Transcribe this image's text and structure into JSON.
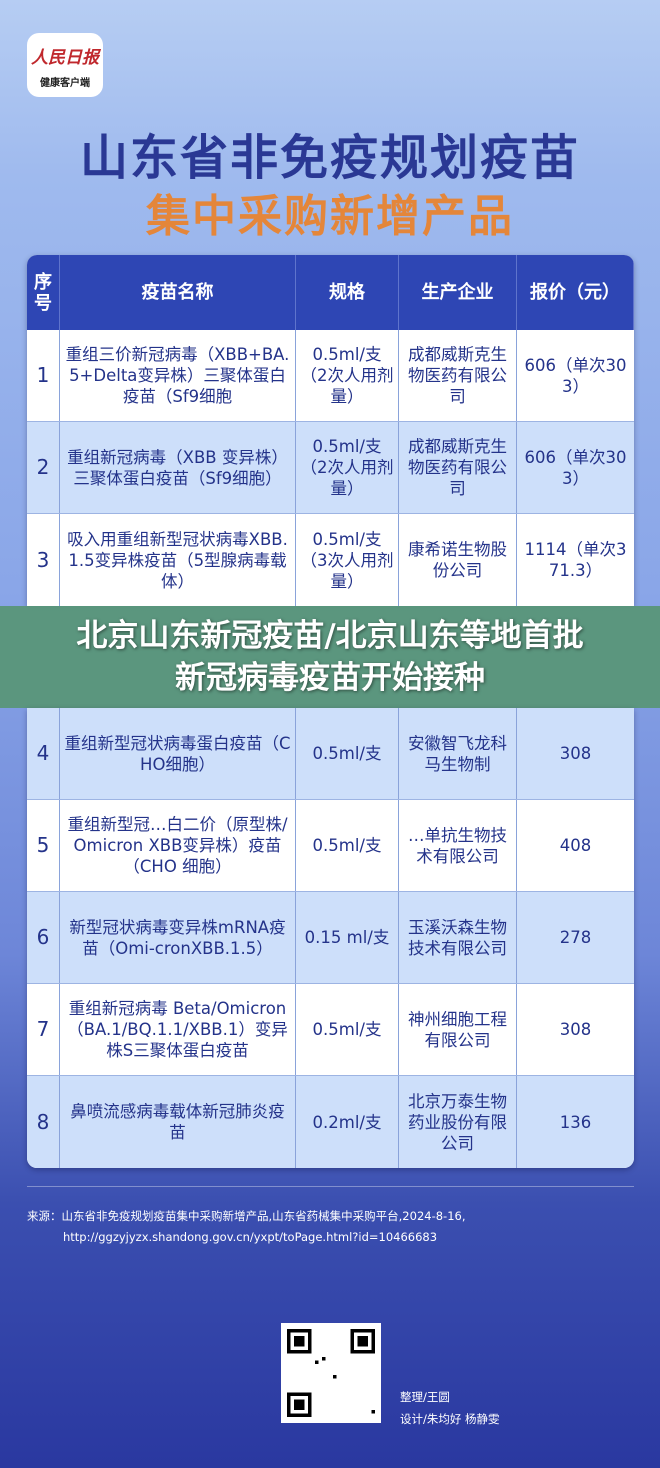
{
  "logo": {
    "line1": "人民日报",
    "line2": "健康客户端"
  },
  "title": {
    "line1": "山东省非免疫规划疫苗",
    "line2": "集中采购新增产品"
  },
  "table": {
    "headers": [
      "序号",
      "疫苗名称",
      "规格",
      "生产企业",
      "报价（元）"
    ],
    "rows": [
      [
        "1",
        "重组三价新冠病毒（XBB+BA.5+Delta变异株）三聚体蛋白疫苗（Sf9细胞",
        "0.5ml/支（2次人用剂量）",
        "成都威斯克生物医药有限公司",
        "606（单次303）"
      ],
      [
        "2",
        "重组新冠病毒（XBB 变异株）三聚体蛋白疫苗（Sf9细胞）",
        "0.5ml/支（2次人用剂量）",
        "成都威斯克生物医药有限公司",
        "606（单次303）"
      ],
      [
        "3",
        "吸入用重组新型冠状病毒XBB.1.5变异株疫苗（5型腺病毒载体）",
        "0.5ml/支（3次人用剂量）",
        "康希诺生物股份公司",
        "1114（单次371.3）"
      ],
      [
        "4",
        "重组新型冠状病毒蛋白疫苗（CHO细胞）",
        "0.5ml/支",
        "安徽智飞龙科马生物制",
        "308"
      ],
      [
        "5",
        "重组新型冠…白二价（原型株/Omicron XBB变异株）疫苗（CHO 细胞）",
        "0.5ml/支",
        "…单抗生物技术有限公司",
        "408"
      ],
      [
        "6",
        "新型冠状病毒变异株mRNA疫苗（Omi-cronXBB.1.5）",
        "0.15 ml/支",
        "玉溪沃森生物技术有限公司",
        "278"
      ],
      [
        "7",
        "重组新冠病毒 Beta/Omicron（BA.1/BQ.1.1/XBB.1）变异株S三聚体蛋白疫苗",
        "0.5ml/支",
        "神州细胞工程有限公司",
        "308"
      ],
      [
        "8",
        "鼻喷流感病毒载体新冠肺炎疫苗",
        "0.2ml/支",
        "北京万泰生物药业股份有限公司",
        "136"
      ]
    ]
  },
  "banner": {
    "line1": "北京山东新冠疫苗/北京山东等地首批",
    "line2": "新冠病毒疫苗开始接种"
  },
  "source": {
    "line1": "来源：山东省非免疫规划疫苗集中采购新增产品,山东省药械集中采购平台,2024-8-16,",
    "line2": "http://ggzyjyzx.shandong.gov.cn/yxpt/toPage.html?id=10466683"
  },
  "credits": {
    "editor": "整理/王圆",
    "design": "设计/朱均好  杨静雯"
  },
  "colors": {
    "header": "#2e46b4",
    "title": "#2a3894",
    "subtitle": "#e4863a",
    "banner": "#5f9a84"
  }
}
